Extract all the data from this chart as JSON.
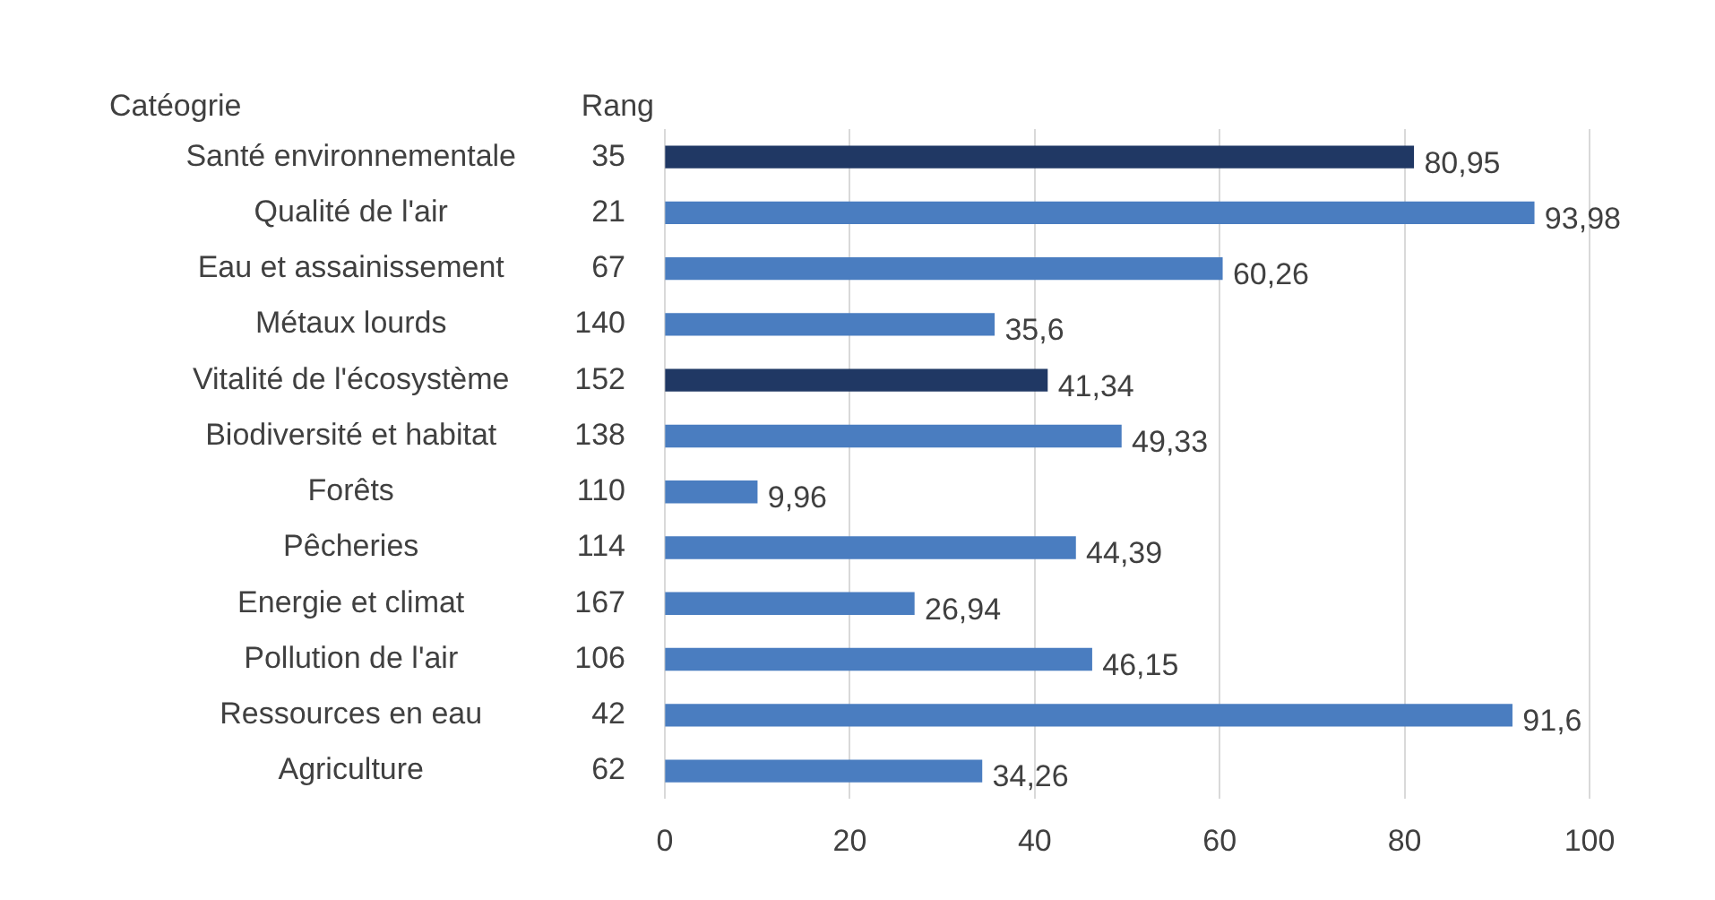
{
  "chart_data": {
    "type": "bar",
    "orientation": "horizontal",
    "categories": [
      "Santé environnementale",
      "Qualité de l'air",
      "Eau et assainissement",
      "Métaux lourds",
      "Vitalité de l'écosystème",
      "Biodiversité et habitat",
      "Forêts",
      "Pêcheries",
      "Energie et climat",
      "Pollution de l'air",
      "Ressources en eau",
      "Agriculture"
    ],
    "y2_categories": [
      "35",
      "21",
      "67",
      "140",
      "152",
      "138",
      "110",
      "114",
      "167",
      "106",
      "42",
      "62"
    ],
    "values": [
      80.95,
      93.98,
      60.26,
      35.6,
      41.34,
      49.33,
      9.96,
      44.39,
      26.94,
      46.15,
      91.6,
      34.26
    ],
    "value_labels": [
      "80,95",
      "93,98",
      "60,26",
      "35,6",
      "41,34",
      "49,33",
      "9,96",
      "44,39",
      "26,94",
      "46,15",
      "91,6",
      "34,26"
    ],
    "colors": [
      "#203864",
      "#4a7dc0",
      "#4a7dc0",
      "#4a7dc0",
      "#203864",
      "#4a7dc0",
      "#4a7dc0",
      "#4a7dc0",
      "#4a7dc0",
      "#4a7dc0",
      "#4a7dc0",
      "#4a7dc0"
    ],
    "annotations": [
      "Catéogrie",
      "Rang"
    ],
    "xlim": [
      0,
      100
    ],
    "xticks": [
      0,
      20,
      40,
      60,
      80,
      100
    ],
    "grid": "x",
    "legend": false
  }
}
